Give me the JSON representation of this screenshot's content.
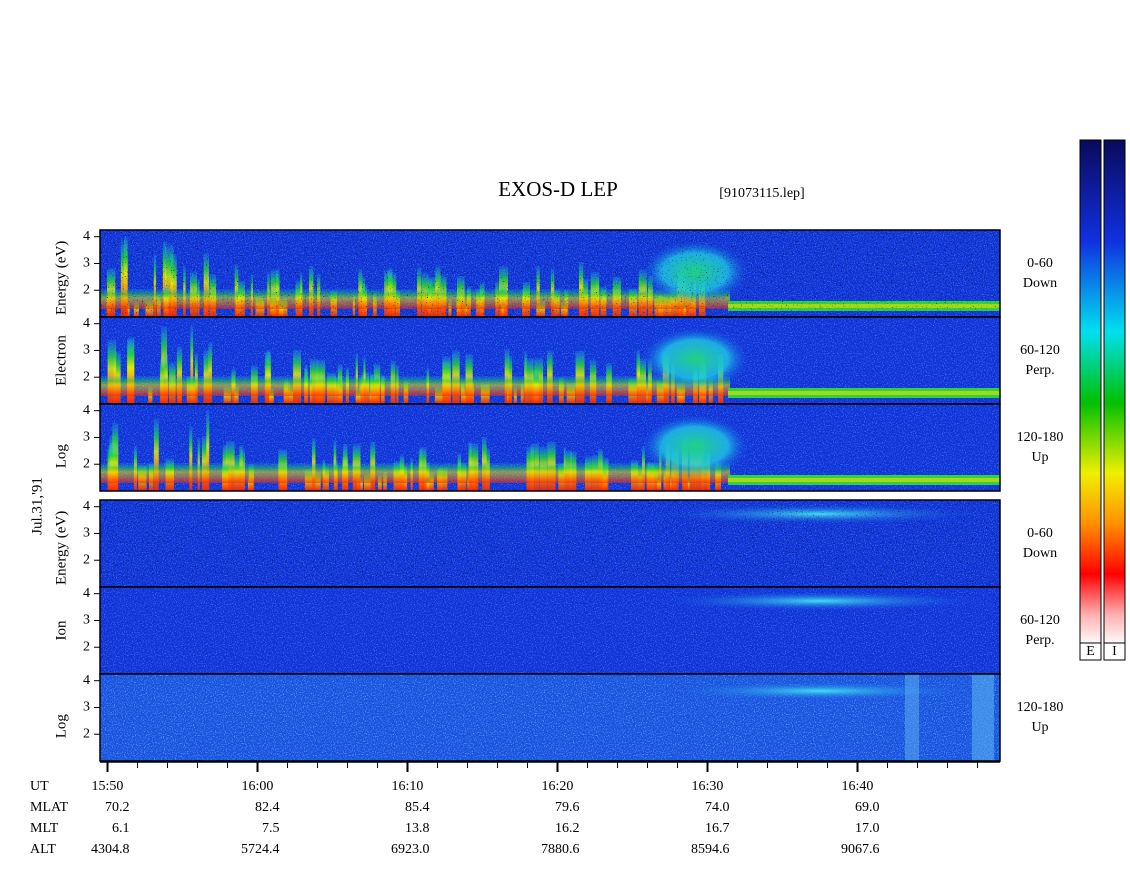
{
  "chart_data": {
    "type": "spectrogram",
    "title": "EXOS-D LEP",
    "subtitle": "[91073115.lep]",
    "date_label": "Jul.31,'91",
    "ylim": [
      1,
      4.25
    ],
    "yticks": [
      2,
      3,
      4
    ],
    "xlim": [
      "15:49:30",
      "16:49:30"
    ],
    "groups": [
      {
        "name": "Electron",
        "y_label": [
          "Log",
          "Electron",
          "Energy (eV)"
        ],
        "panels": [
          [
            "0-60",
            "Down"
          ],
          [
            "60-120",
            "Perp."
          ],
          [
            "120-180",
            "Up"
          ]
        ]
      },
      {
        "name": "Ion",
        "y_label": [
          "Log",
          "Ion",
          "Energy (eV)"
        ],
        "panels": [
          [
            "0-60",
            "Down"
          ],
          [
            "60-120",
            "Perp."
          ],
          [
            "120-180",
            "Up"
          ]
        ]
      }
    ],
    "colorbar_labels": [
      "E",
      "I"
    ],
    "ephemeris": {
      "labels": [
        "UT",
        "MLAT",
        "MLT",
        "ALT"
      ],
      "UT": [
        "15:50",
        "16:00",
        "16:10",
        "16:20",
        "16:30",
        "16:40"
      ],
      "MLAT": [
        "70.2",
        "82.4",
        "85.4",
        "79.6",
        "74.0",
        "69.0"
      ],
      "MLT": [
        "6.1",
        "7.5",
        "13.8",
        "16.2",
        "16.7",
        "17.0"
      ],
      "ALT": [
        "4304.8",
        "5724.4",
        "6923.0",
        "7880.6",
        "8594.6",
        "9067.6"
      ]
    }
  }
}
